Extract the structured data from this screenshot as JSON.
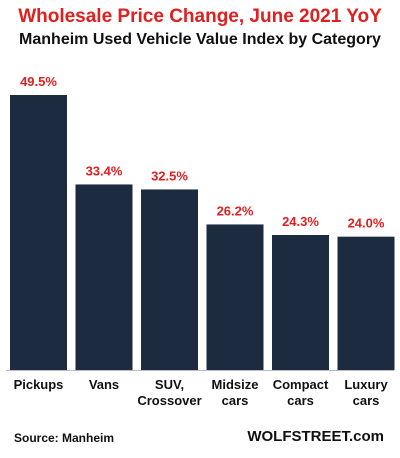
{
  "chart_data": {
    "type": "bar",
    "title": "Wholesale Price Change, June 2021 YoY",
    "subtitle": "Manheim Used Vehicle Value Index by Category",
    "categories": [
      [
        "Pickups"
      ],
      [
        "Vans"
      ],
      [
        "SUV,",
        "Crossover"
      ],
      [
        "Midsize",
        "cars"
      ],
      [
        "Compact",
        "cars"
      ],
      [
        "Luxury",
        "cars"
      ]
    ],
    "values": [
      49.5,
      33.4,
      32.5,
      26.2,
      24.3,
      24.0
    ],
    "data_labels": [
      "49.5%",
      "33.4%",
      "32.5%",
      "26.2%",
      "24.3%",
      "24.0%"
    ],
    "ylim": [
      0,
      50
    ],
    "grid": false,
    "legend": "none",
    "bar_color": "#1c2b3f",
    "label_color": "#e01f1f"
  },
  "footer": {
    "source": "Source: Manheim",
    "brand": "WOLFSTREET.com"
  }
}
